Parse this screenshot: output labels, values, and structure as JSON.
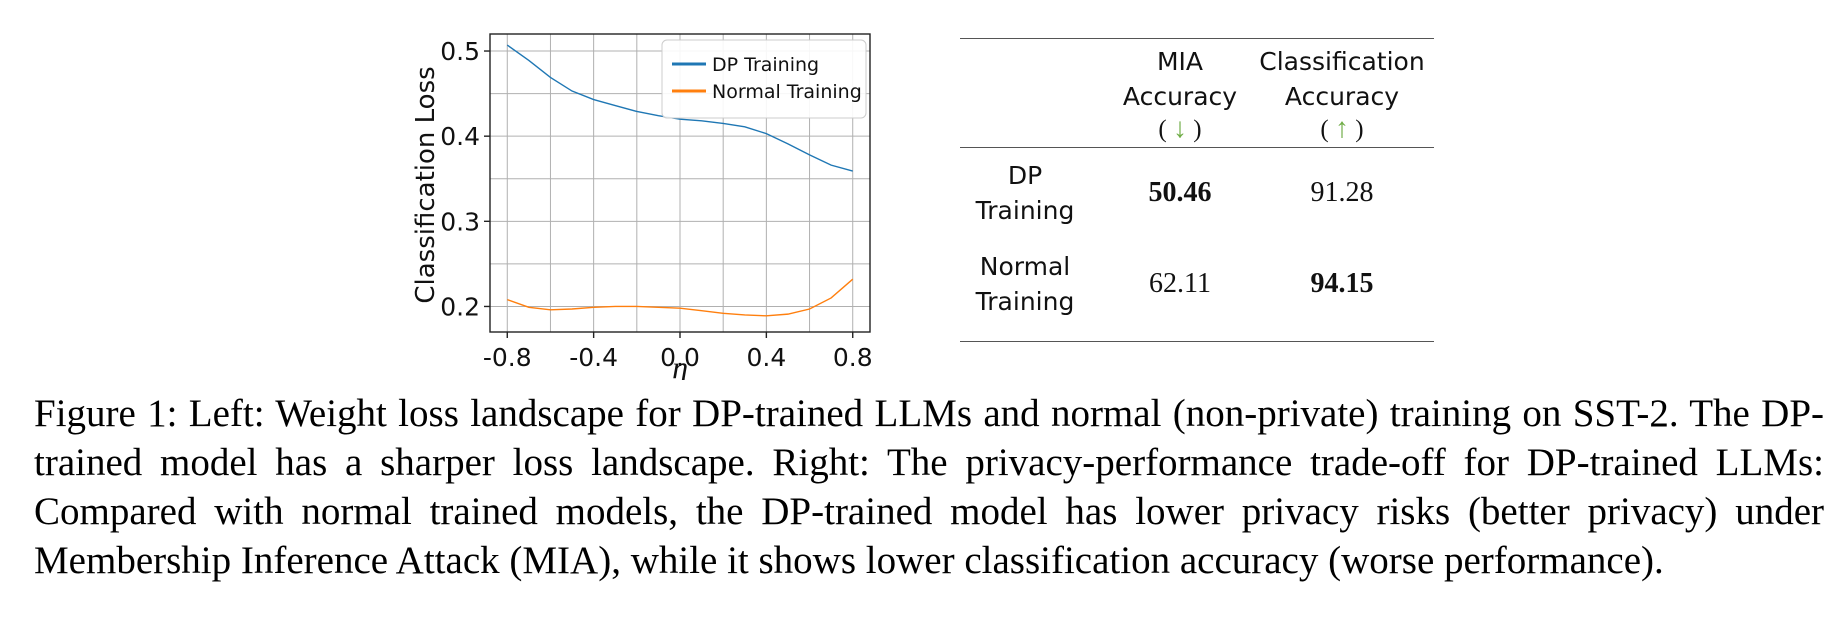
{
  "chart_data": {
    "type": "line",
    "xlabel": "η",
    "ylabel": "Classification Loss",
    "xlim": [
      -0.88,
      0.88
    ],
    "ylim": [
      0.17,
      0.52
    ],
    "xticks": [
      -0.8,
      -0.4,
      0.0,
      0.4,
      0.8
    ],
    "xtick_labels": [
      "-0.8",
      "-0.4",
      "0.0",
      "0.4",
      "0.8"
    ],
    "yticks": [
      0.2,
      0.3,
      0.4,
      0.5
    ],
    "ytick_labels": [
      "0.2",
      "0.3",
      "0.4",
      "0.5"
    ],
    "grid": true,
    "legend_position": "top-right",
    "x": [
      -0.8,
      -0.7,
      -0.6,
      -0.5,
      -0.4,
      -0.3,
      -0.2,
      -0.1,
      0.0,
      0.1,
      0.2,
      0.3,
      0.4,
      0.5,
      0.6,
      0.7,
      0.8
    ],
    "series": [
      {
        "name": "DP Training",
        "color": "#1f77b4",
        "values": [
          0.507,
          0.489,
          0.469,
          0.453,
          0.443,
          0.436,
          0.429,
          0.424,
          0.42,
          0.418,
          0.415,
          0.411,
          0.403,
          0.391,
          0.378,
          0.366,
          0.359
        ]
      },
      {
        "name": "Normal Training",
        "color": "#ff7f0e",
        "values": [
          0.208,
          0.199,
          0.196,
          0.197,
          0.199,
          0.2,
          0.2,
          0.199,
          0.198,
          0.195,
          0.192,
          0.19,
          0.189,
          0.191,
          0.197,
          0.21,
          0.232
        ]
      }
    ]
  },
  "table": {
    "headers": {
      "mia_line1": "MIA",
      "mia_line2": "Accuracy",
      "mia_arrow": "↓",
      "cls_line1": "Classification",
      "cls_line2": "Accuracy",
      "cls_arrow": "↑",
      "paren_open": "(",
      "paren_close": ")"
    },
    "arrow_color": "#70ad47",
    "rows": [
      {
        "label_line1": "DP",
        "label_line2": "Training",
        "mia": "50.46",
        "cls": "91.28"
      },
      {
        "label_line1": "Normal",
        "label_line2": "Training",
        "mia": "62.11",
        "cls": "94.15"
      }
    ]
  },
  "caption": "Figure 1: Left: Weight loss landscape for DP-trained LLMs and normal (non-private) training on SST-2. The DP-trained model has a sharper loss landscape. Right: The privacy-performance trade-off for DP-trained LLMs: Compared with normal trained models, the DP-trained model has lower privacy risks (better privacy) under Membership Inference Attack (MIA), while it shows lower classification accuracy (worse performance)."
}
